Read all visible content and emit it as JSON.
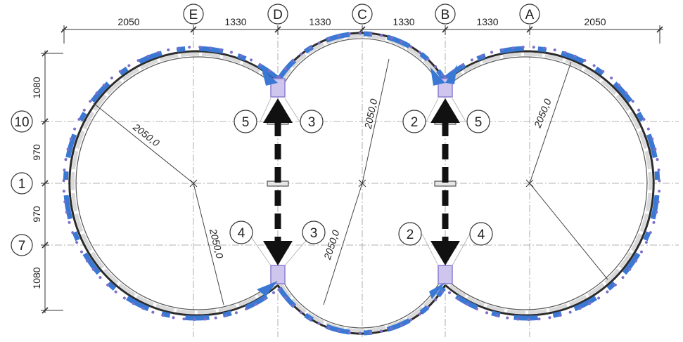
{
  "grid_columns": [
    {
      "id": "E",
      "label": "E"
    },
    {
      "id": "D",
      "label": "D"
    },
    {
      "id": "C",
      "label": "C"
    },
    {
      "id": "B",
      "label": "B"
    },
    {
      "id": "A",
      "label": "A"
    }
  ],
  "grid_rows": [
    {
      "id": "10",
      "label": "10"
    },
    {
      "id": "1",
      "label": "1"
    },
    {
      "id": "7",
      "label": "7"
    }
  ],
  "top_dimensions": [
    "2050",
    "1330",
    "1330",
    "1330",
    "1330",
    "2050"
  ],
  "left_dimensions": [
    "1080",
    "970",
    "970",
    "1080"
  ],
  "radius_labels": [
    "2050,0",
    "2050,0",
    "2050,0",
    "2050,0",
    "2050,0"
  ],
  "segment_labels": {
    "left_joint_top": [
      "5",
      "3"
    ],
    "left_joint_bottom": [
      "4",
      "3"
    ],
    "right_joint_top": [
      "2",
      "5"
    ],
    "right_joint_bottom": [
      "2",
      "4"
    ]
  },
  "colors": {
    "track": "#2b2b2b",
    "chain_highlight": "#3a78d4",
    "joint_highlight": "#8c7fd1",
    "arrow": "#111111",
    "grid": "#9a9a9a"
  },
  "icons": [
    "double-headed-dashed-arrow-icon",
    "double-headed-dashed-arrow-icon"
  ]
}
